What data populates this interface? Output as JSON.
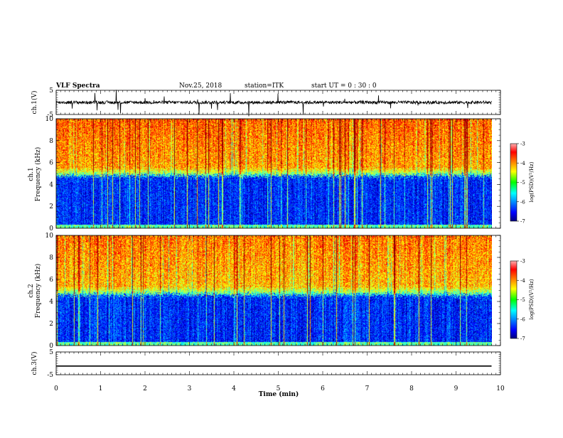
{
  "header": {
    "title": "VLF Spectra",
    "date": "Nov.25, 2018",
    "station": "station=ITK",
    "start": "start UT = 0 : 30 : 0"
  },
  "chart_data": [
    {
      "type": "line",
      "panel": "waveform-top",
      "ylabel": "ch.1(V)",
      "ylim": [
        -5,
        5
      ],
      "yticks": [
        "5",
        "-5"
      ],
      "xlim": [
        0,
        10
      ],
      "note": "noisy waveform near 0 V with impulsive spikes"
    },
    {
      "type": "heatmap",
      "panel": "spectrogram-ch1",
      "ylabel": "ch.1\nFrequency (kHz)",
      "ylabel_line1": "ch.1",
      "ylabel_line2": "Frequency (kHz)",
      "ylim": [
        0,
        10
      ],
      "yticks": [
        "0",
        "2",
        "4",
        "6",
        "8",
        "10"
      ],
      "xlim": [
        0,
        10
      ],
      "colorbar": {
        "label": "log(PSD)(V²/Hz)",
        "range": [
          -7,
          -3
        ],
        "ticks": [
          "-3",
          "-4",
          "-5",
          "-6",
          "-7"
        ],
        "colormap": "jet"
      },
      "description_values": {
        "low_band_kHz": [
          0,
          4.8
        ],
        "low_band_level": -6.8,
        "high_band_level": -4.2,
        "data_end_min": 9.8
      }
    },
    {
      "type": "heatmap",
      "panel": "spectrogram-ch2",
      "ylabel_line1": "ch.2",
      "ylabel_line2": "Frequency (kHz)",
      "ylim": [
        0,
        10
      ],
      "yticks": [
        "0",
        "2",
        "4",
        "6",
        "8",
        "10"
      ],
      "xlim": [
        0,
        10
      ],
      "colorbar": {
        "label": "log(PSD)(V²/Hz)",
        "range": [
          -7,
          -3
        ],
        "ticks": [
          "-3",
          "-4",
          "-5",
          "-6",
          "-7"
        ],
        "colormap": "jet"
      },
      "description_values": {
        "low_band_kHz": [
          0,
          4.6
        ],
        "low_band_level": -6.8,
        "high_band_level": -4.3,
        "data_end_min": 9.8
      }
    },
    {
      "type": "line",
      "panel": "waveform-bottom",
      "ylabel": "ch.3(V)",
      "ylim": [
        -5,
        5
      ],
      "yticks": [
        "5",
        "-5"
      ],
      "xlim": [
        0,
        10
      ],
      "constant_value": -1.2
    }
  ],
  "xaxis": {
    "label": "Time (min)",
    "ticks": [
      "0",
      "1",
      "2",
      "3",
      "4",
      "5",
      "6",
      "7",
      "8",
      "9",
      "10"
    ]
  },
  "colorbar_label": "log(PSD)(V²/Hz)",
  "colorbar_ticks": [
    "-3",
    "-4",
    "-5",
    "-6",
    "-7"
  ]
}
